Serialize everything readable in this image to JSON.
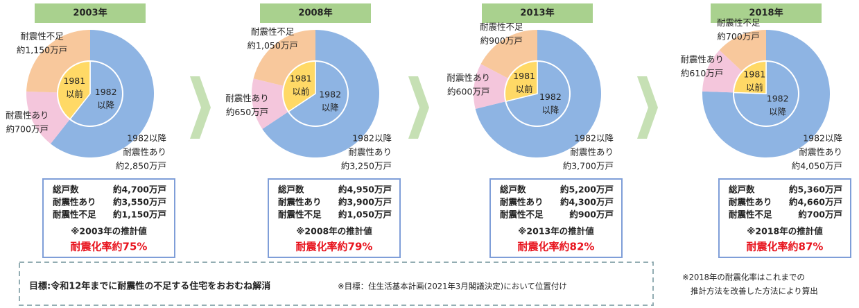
{
  "chart_data": [
    {
      "type": "donut",
      "title": "2003年",
      "outer": {
        "names": [
          [
            "1982以降",
            "耐震性あり"
          ],
          [
            "耐震性あり"
          ],
          [
            "耐震性不足"
          ]
        ],
        "values": [
          2850,
          700,
          1150
        ],
        "value_labels": [
          "約2,850万戸",
          "約700万戸",
          "約1,150万戸"
        ],
        "colors": [
          "#8eb4e3",
          "#f4c6dc",
          "#f8c89c"
        ]
      },
      "inner": {
        "names": [
          [
            "1982",
            "以降"
          ],
          [
            "1981",
            "以前"
          ]
        ],
        "values": [
          2850,
          1850
        ],
        "colors": [
          "#8eb4e3",
          "#ffd966"
        ]
      },
      "summary": {
        "rows": [
          [
            "総戸数",
            "約4,700万戸"
          ],
          [
            "耐震性あり",
            "約3,550万戸"
          ],
          [
            "耐震性不足",
            "約1,150万戸"
          ]
        ],
        "note": "※2003年の推計値",
        "rate": "耐震化率約75%"
      }
    },
    {
      "type": "donut",
      "title": "2008年",
      "outer": {
        "names": [
          [
            "1982以降",
            "耐震性あり"
          ],
          [
            "耐震性あり"
          ],
          [
            "耐震性不足"
          ]
        ],
        "values": [
          3250,
          650,
          1050
        ],
        "value_labels": [
          "約3,250万戸",
          "約650万戸",
          "約1,050万戸"
        ],
        "colors": [
          "#8eb4e3",
          "#f4c6dc",
          "#f8c89c"
        ]
      },
      "inner": {
        "names": [
          [
            "1982",
            "以降"
          ],
          [
            "1981",
            "以前"
          ]
        ],
        "values": [
          3250,
          1700
        ],
        "colors": [
          "#8eb4e3",
          "#ffd966"
        ]
      },
      "summary": {
        "rows": [
          [
            "総戸数",
            "約4,950万戸"
          ],
          [
            "耐震性あり",
            "約3,900万戸"
          ],
          [
            "耐震性不足",
            "約1,050万戸"
          ]
        ],
        "note": "※2008年の推計値",
        "rate": "耐震化率約79%"
      }
    },
    {
      "type": "donut",
      "title": "2013年",
      "outer": {
        "names": [
          [
            "1982以降",
            "耐震性あり"
          ],
          [
            "耐震性あり"
          ],
          [
            "耐震性不足"
          ]
        ],
        "values": [
          3700,
          600,
          900
        ],
        "value_labels": [
          "約3,700万戸",
          "約600万戸",
          "約900万戸"
        ],
        "colors": [
          "#8eb4e3",
          "#f4c6dc",
          "#f8c89c"
        ]
      },
      "inner": {
        "names": [
          [
            "1982",
            "以降"
          ],
          [
            "1981",
            "以前"
          ]
        ],
        "values": [
          3700,
          1500
        ],
        "colors": [
          "#8eb4e3",
          "#ffd966"
        ]
      },
      "summary": {
        "rows": [
          [
            "総戸数",
            "約5,200万戸"
          ],
          [
            "耐震性あり",
            "約4,300万戸"
          ],
          [
            "耐震性不足",
            "約900万戸"
          ]
        ],
        "note": "※2013年の推計値",
        "rate": "耐震化率約82%"
      }
    },
    {
      "type": "donut",
      "title": "2018年",
      "outer": {
        "names": [
          [
            "1982以降",
            "耐震性あり"
          ],
          [
            "耐震性あり"
          ],
          [
            "耐震性不足"
          ]
        ],
        "values": [
          4050,
          610,
          700
        ],
        "value_labels": [
          "約4,050万戸",
          "約610万戸",
          "約700万戸"
        ],
        "colors": [
          "#8eb4e3",
          "#f4c6dc",
          "#f8c89c"
        ]
      },
      "inner": {
        "names": [
          [
            "1982",
            "以降"
          ],
          [
            "1981",
            "以前"
          ]
        ],
        "values": [
          4050,
          1310
        ],
        "colors": [
          "#8eb4e3",
          "#ffd966"
        ]
      },
      "summary": {
        "rows": [
          [
            "総戸数",
            "約5,360万戸"
          ],
          [
            "耐震性あり",
            "約4,660万戸"
          ],
          [
            "耐震性不足",
            "約700万戸"
          ]
        ],
        "note": "※2018年の推計値",
        "rate": "耐震化率約87%"
      }
    }
  ],
  "goal": "目標:令和12年までに耐震性の不足する住宅をおおむね解消",
  "goal_note": "※目標：住生活基本計画(2021年3月閣議決定)において位置付け",
  "footnote": [
    "※2018年の耐震化率はこれまでの",
    "推計方法を改善した方法により算出"
  ]
}
